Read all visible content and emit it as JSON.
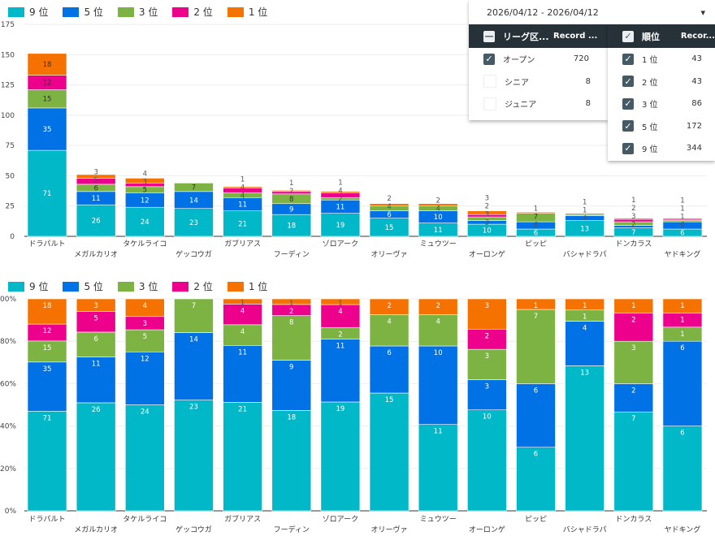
{
  "legend": [
    {
      "label": "9 位",
      "color": "#00b8c8"
    },
    {
      "label": "5 位",
      "color": "#0072e5"
    },
    {
      "label": "3 位",
      "color": "#7cb342"
    },
    {
      "label": "2 位",
      "color": "#ec008c"
    },
    {
      "label": "1 位",
      "color": "#f57200"
    }
  ],
  "date_filter": {
    "value": "2026/04/12 - 2026/04/12",
    "arrow": "▾"
  },
  "league_filter": {
    "header": {
      "label": "リーグ区...",
      "count": "Record ..."
    },
    "rows": [
      {
        "label": "オープン",
        "count": "720",
        "checked": true
      },
      {
        "label": "シニア",
        "count": "8",
        "checked": false
      },
      {
        "label": "ジュニア",
        "count": "8",
        "checked": false
      }
    ]
  },
  "rank_filter": {
    "header": {
      "label": "順位",
      "count": "Recor..."
    },
    "rows": [
      {
        "label": "1 位",
        "count": "43",
        "checked": true
      },
      {
        "label": "2 位",
        "count": "43",
        "checked": true
      },
      {
        "label": "3 位",
        "count": "86",
        "checked": true
      },
      {
        "label": "5 位",
        "count": "172",
        "checked": true
      },
      {
        "label": "9 位",
        "count": "344",
        "checked": true
      }
    ]
  },
  "chart_data": [
    {
      "type": "bar",
      "stacked": true,
      "title": "",
      "xlabel": "",
      "ylabel": "",
      "ylim": [
        0,
        175
      ],
      "yticks": [
        "0",
        "25",
        "50",
        "75",
        "100",
        "125",
        "150",
        "175"
      ],
      "grid": true,
      "legend_position": "top-left",
      "categories": [
        "ドラパルト",
        "メガルカリオ",
        "タケルライコ",
        "ゲッコウガ",
        "ガブリアス",
        "フーディン",
        "ゾロアーク",
        "オリーヴァ",
        "ミュウツー",
        "オーロンゲ",
        "ピッピ",
        "バシャドラパ",
        "ドンカラス",
        "ヤドキング"
      ],
      "series": [
        {
          "name": "9 位",
          "values": [
            71,
            26,
            24,
            23,
            21,
            18,
            19,
            15,
            11,
            10,
            6,
            13,
            7,
            6
          ]
        },
        {
          "name": "5 位",
          "values": [
            35,
            11,
            12,
            14,
            11,
            9,
            11,
            6,
            10,
            3,
            6,
            4,
            2,
            6
          ]
        },
        {
          "name": "3 位",
          "values": [
            15,
            6,
            5,
            7,
            4,
            8,
            2,
            4,
            4,
            3,
            7,
            1,
            3,
            1
          ]
        },
        {
          "name": "2 位",
          "values": [
            12,
            5,
            3,
            0,
            4,
            2,
            4,
            0,
            0,
            2,
            0,
            0,
            2,
            1
          ]
        },
        {
          "name": "1 位",
          "values": [
            18,
            3,
            4,
            0,
            1,
            1,
            1,
            2,
            2,
            3,
            1,
            1,
            1,
            1
          ]
        }
      ]
    },
    {
      "type": "bar",
      "stacked": true,
      "normalized": true,
      "title": "",
      "xlabel": "",
      "ylabel": "",
      "ylim": [
        0,
        100
      ],
      "yticks": [
        "0%",
        "20%",
        "40%",
        "60%",
        "80%",
        "100%"
      ],
      "grid": true,
      "legend_position": "top-left",
      "categories": [
        "ドラパルト",
        "メガルカリオ",
        "タケルライコ",
        "ゲッコウガ",
        "ガブリアス",
        "フーディン",
        "ゾロアーク",
        "オリーヴァ",
        "ミュウツー",
        "オーロンゲ",
        "ピッピ",
        "バシャドラパ",
        "ドンカラス",
        "ヤドキング"
      ],
      "series": [
        {
          "name": "9 位",
          "values": [
            71,
            26,
            24,
            23,
            21,
            18,
            19,
            15,
            11,
            10,
            6,
            13,
            7,
            6
          ]
        },
        {
          "name": "5 位",
          "values": [
            35,
            11,
            12,
            14,
            11,
            9,
            11,
            6,
            10,
            3,
            6,
            4,
            2,
            6
          ]
        },
        {
          "name": "3 位",
          "values": [
            15,
            6,
            5,
            7,
            4,
            8,
            2,
            4,
            4,
            3,
            7,
            1,
            3,
            1
          ]
        },
        {
          "name": "2 位",
          "values": [
            12,
            5,
            3,
            0,
            4,
            2,
            4,
            0,
            0,
            2,
            0,
            0,
            2,
            1
          ]
        },
        {
          "name": "1 位",
          "values": [
            18,
            3,
            4,
            0,
            1,
            1,
            1,
            2,
            2,
            3,
            1,
            1,
            1,
            1
          ]
        }
      ]
    }
  ]
}
